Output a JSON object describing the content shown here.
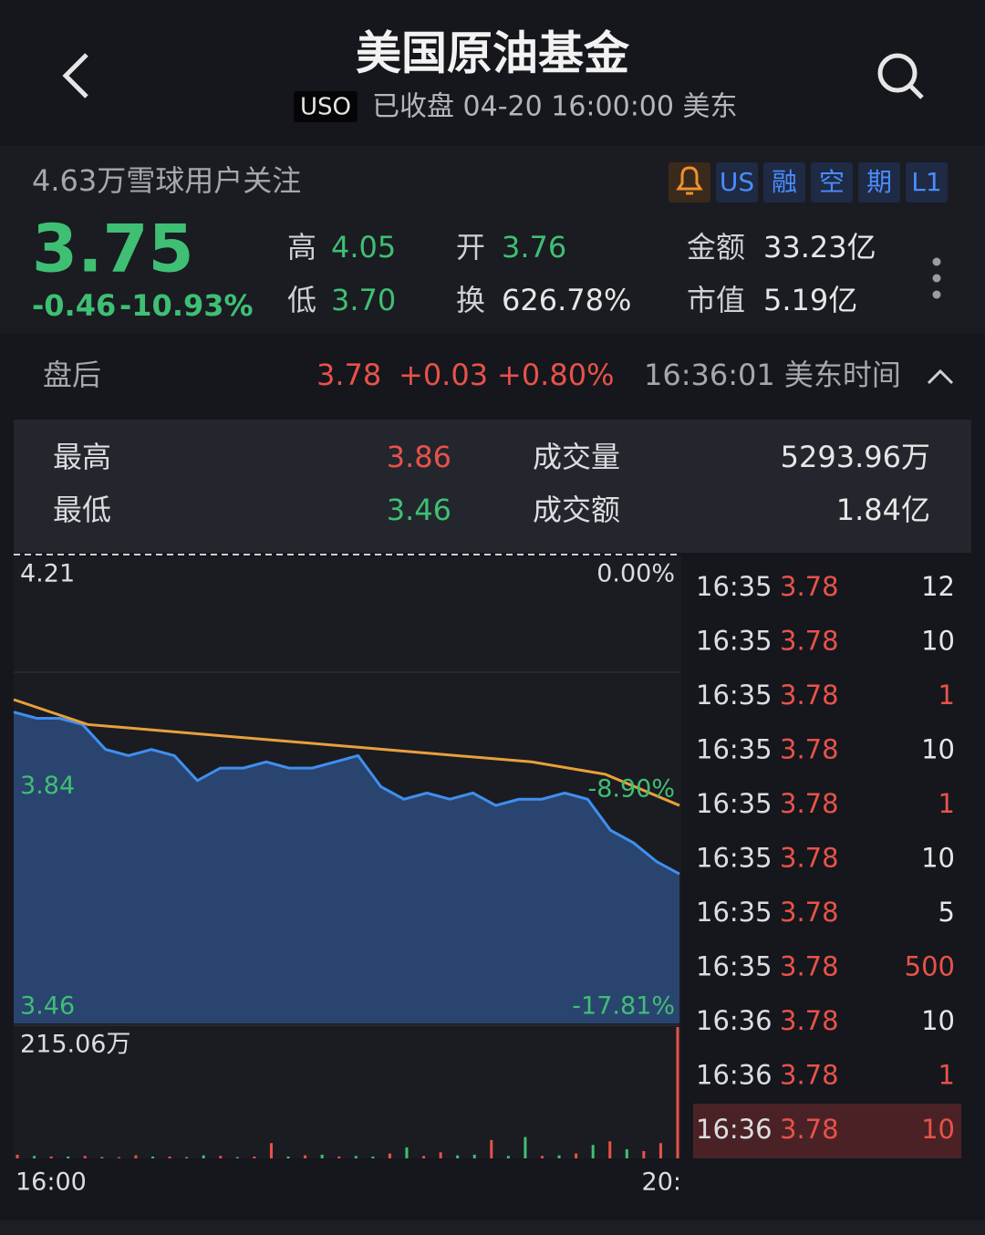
{
  "header": {
    "title": "美国原油基金",
    "symbol": "USO",
    "status": "已收盘 04-20 16:00:00 美东"
  },
  "followers": "4.63万雪球用户关注",
  "badges": [
    "US",
    "融",
    "空",
    "期",
    "L1"
  ],
  "quote": {
    "price": "3.75",
    "change": "-0.46",
    "change_pct": "-10.93%"
  },
  "stats": [
    {
      "label": "高",
      "value": "4.05",
      "color": "#3fbf74"
    },
    {
      "label": "低",
      "value": "3.70",
      "color": "#3fbf74"
    },
    {
      "label": "开",
      "value": "3.76",
      "color": "#3fbf74"
    },
    {
      "label": "换",
      "value": "626.78%",
      "color": "#e6e6e6"
    },
    {
      "label": "金额",
      "value": "33.23亿",
      "color": "#e6e6e6"
    },
    {
      "label": "市值",
      "value": "5.19亿",
      "color": "#e6e6e6"
    }
  ],
  "after_hours": {
    "label": "盘后",
    "price": "3.78",
    "change": "+0.03",
    "change_pct": "+0.80%",
    "time": "16:36:01 美东时间"
  },
  "after_hours_stats": [
    {
      "label": "最高",
      "value": "3.86",
      "color": "#e8524a"
    },
    {
      "label": "最低",
      "value": "3.46",
      "color": "#3fbf74"
    },
    {
      "label": "成交量",
      "value": "5293.96万",
      "color": "#e6e6e6"
    },
    {
      "label": "成交额",
      "value": "1.84亿",
      "color": "#e6e6e6"
    }
  ],
  "chart": {
    "type": "line",
    "ylim": [
      3.46,
      4.21
    ],
    "yticks": [
      4.21,
      3.84,
      3.46
    ],
    "y2lim": [
      -17.81,
      0
    ],
    "y2ticks": [
      {
        "value": 0,
        "label": "0.00%"
      },
      {
        "value": -8.9,
        "label": "-8.90%"
      },
      {
        "value": -17.81,
        "label": "-17.81%"
      }
    ],
    "xticks": [
      "16:00",
      "20:"
    ],
    "price": {
      "color": "#3f8ff0",
      "values": [
        3.96,
        3.95,
        3.95,
        3.94,
        3.9,
        3.89,
        3.9,
        3.89,
        3.85,
        3.87,
        3.87,
        3.88,
        3.87,
        3.87,
        3.88,
        3.89,
        3.84,
        3.82,
        3.83,
        3.82,
        3.83,
        3.81,
        3.82,
        3.82,
        3.83,
        3.82,
        3.77,
        3.75,
        3.72,
        3.7
      ]
    },
    "average": {
      "color": "#e8a03c",
      "values": [
        3.98,
        3.94,
        3.93,
        3.92,
        3.91,
        3.9,
        3.89,
        3.88,
        3.86,
        3.81
      ]
    },
    "volume_label": "215.06万",
    "vlim": [
      0,
      215.06
    ],
    "volume_up": {
      "color": "#e8524a",
      "values": [
        6,
        null,
        3,
        null,
        4,
        null,
        2,
        5,
        null,
        3,
        null,
        null,
        4,
        null,
        3,
        25,
        null,
        5,
        null,
        3,
        null,
        null,
        8,
        null,
        4,
        10,
        null,
        null,
        30,
        null,
        null,
        4,
        null,
        8,
        null,
        28,
        null,
        12,
        25,
        215.06
      ]
    },
    "volume_down": {
      "color": "#3fbf74",
      "values": [
        null,
        4,
        null,
        3,
        null,
        2,
        null,
        null,
        3,
        null,
        2,
        5,
        null,
        2,
        null,
        null,
        3,
        null,
        6,
        null,
        4,
        3,
        null,
        18,
        null,
        null,
        5,
        6,
        null,
        4,
        35,
        null,
        5,
        null,
        22,
        null,
        15,
        null,
        null,
        null
      ]
    }
  },
  "trades": [
    {
      "time": "16:35",
      "price": 3.78,
      "qty": 12,
      "color": "#e6e6e6"
    },
    {
      "time": "16:35",
      "price": 3.78,
      "qty": 10,
      "color": "#e6e6e6"
    },
    {
      "time": "16:35",
      "price": 3.78,
      "qty": 1,
      "color": "#e8524a"
    },
    {
      "time": "16:35",
      "price": 3.78,
      "qty": 10,
      "color": "#e6e6e6"
    },
    {
      "time": "16:35",
      "price": 3.78,
      "qty": 1,
      "color": "#e8524a"
    },
    {
      "time": "16:35",
      "price": 3.78,
      "qty": 10,
      "color": "#e6e6e6"
    },
    {
      "time": "16:35",
      "price": 3.78,
      "qty": 5,
      "color": "#e6e6e6"
    },
    {
      "time": "16:35",
      "price": 3.78,
      "qty": 500,
      "color": "#e8524a"
    },
    {
      "time": "16:36",
      "price": 3.78,
      "qty": 10,
      "color": "#e6e6e6"
    },
    {
      "time": "16:36",
      "price": 3.78,
      "qty": 1,
      "color": "#e8524a"
    },
    {
      "time": "16:36",
      "price": 3.78,
      "qty": 10,
      "color": "#e8524a",
      "highlight": true
    }
  ]
}
